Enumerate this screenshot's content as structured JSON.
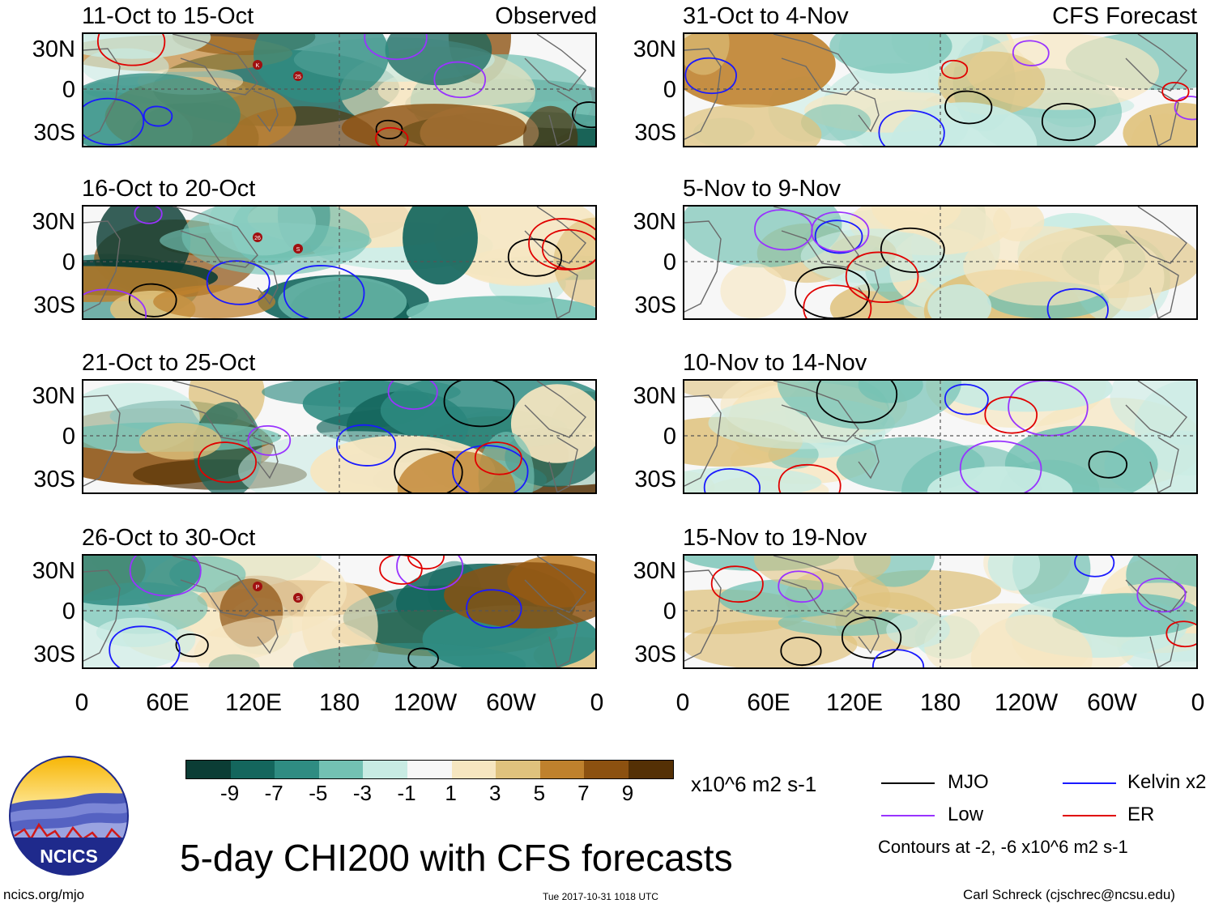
{
  "header": {
    "observed_label": "Observed",
    "forecast_label": "CFS Forecast"
  },
  "panels": [
    {
      "date": "11-Oct to 15-Oct",
      "group": "observed",
      "intensity": 0.95,
      "storms": [
        "K",
        "25"
      ]
    },
    {
      "date": "16-Oct to 20-Oct",
      "group": "observed",
      "intensity": 1.0,
      "storms": [
        "26",
        "S"
      ]
    },
    {
      "date": "21-Oct to 25-Oct",
      "group": "observed",
      "intensity": 0.95,
      "storms": []
    },
    {
      "date": "26-Oct to 30-Oct",
      "group": "observed",
      "intensity": 0.75,
      "storms": [
        "P",
        "S"
      ]
    },
    {
      "date": "31-Oct to 4-Nov",
      "group": "forecast",
      "intensity": 0.45,
      "storms": []
    },
    {
      "date": "5-Nov to 9-Nov",
      "group": "forecast",
      "intensity": 0.35,
      "storms": []
    },
    {
      "date": "10-Nov to 14-Nov",
      "group": "forecast",
      "intensity": 0.35,
      "storms": []
    },
    {
      "date": "15-Nov to 19-Nov",
      "group": "forecast",
      "intensity": 0.4,
      "storms": []
    }
  ],
  "axes": {
    "lat_labels": [
      "30N",
      "0",
      "30S"
    ],
    "lon_labels": [
      "0",
      "60E",
      "120E",
      "180",
      "120W",
      "60W",
      "0"
    ]
  },
  "colorbar": {
    "colors": [
      "#0b3d35",
      "#14665d",
      "#2f8c82",
      "#73c1b3",
      "#c8ebe3",
      "#f7f7f7",
      "#f6e6c0",
      "#dfc27d",
      "#bf812d",
      "#8c5110",
      "#543005"
    ],
    "ticks": [
      "-9",
      "-7",
      "-5",
      "-3",
      "-1",
      "1",
      "3",
      "5",
      "7",
      "9"
    ],
    "units": "x10^6 m2 s-1"
  },
  "legend": {
    "items": [
      {
        "label": "MJO",
        "color": "#000000"
      },
      {
        "label": "Kelvin x2",
        "color": "#1a1aff"
      },
      {
        "label": "Low",
        "color": "#9933ff"
      },
      {
        "label": "ER",
        "color": "#e00000"
      }
    ],
    "contour_note": "Contours at -2, -6 x10^6 m2 s-1"
  },
  "footer": {
    "title": "5-day CHI200 with CFS forecasts",
    "logo_text": "NCICS",
    "url": "ncics.org/mjo",
    "timestamp": "Tue 2017-10-31 1018 UTC",
    "credit": "Carl Schreck (cjschrec@ncsu.edu)"
  }
}
